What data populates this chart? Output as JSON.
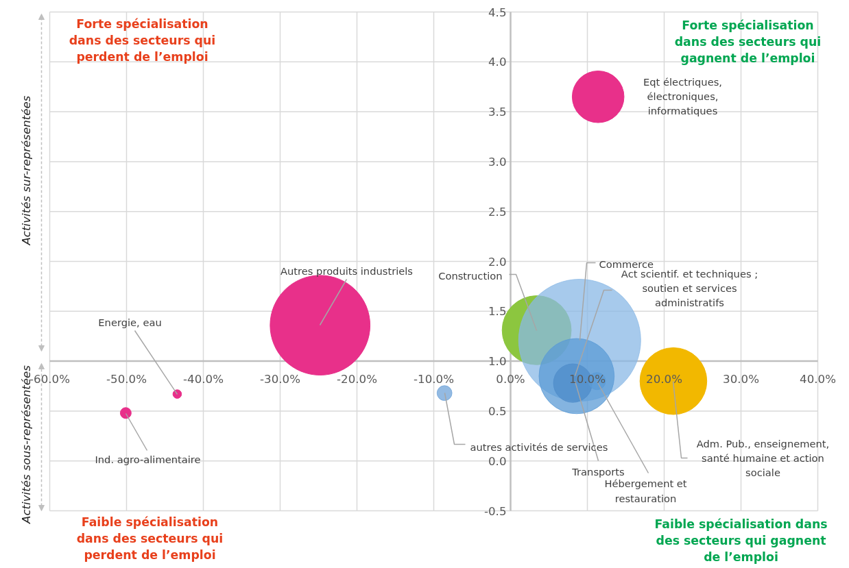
{
  "chart_data": {
    "type": "bubble",
    "series": [
      {
        "name": "Eqt électriques, électroniques, informatiques",
        "color": "#e8308a",
        "x": [
          11.4
        ],
        "values": [
          3.65
        ],
        "sizes": [
          0.18
        ]
      },
      {
        "name": "Autres produits industriels",
        "color": "#e8308a",
        "x": [
          -24.8
        ],
        "values": [
          1.36
        ],
        "sizes": [
          0.67
        ]
      },
      {
        "name": "Energie, eau",
        "color": "#e8308a",
        "x": [
          -43.4
        ],
        "values": [
          0.67
        ],
        "sizes": [
          0.005
        ]
      },
      {
        "name": "Ind. agro-alimentaire",
        "color": "#e8308a",
        "x": [
          -50.1
        ],
        "values": [
          0.48
        ],
        "sizes": [
          0.008
        ]
      },
      {
        "name": "autres activités de services",
        "color": "#6fa3d8",
        "x": [
          -8.6
        ],
        "values": [
          0.68
        ],
        "sizes": [
          0.015
        ]
      },
      {
        "name": "Construction",
        "color": "#8cc63f",
        "x": [
          3.4
        ],
        "values": [
          1.31
        ],
        "sizes": [
          0.32
        ]
      },
      {
        "name": "Commerce",
        "color": "#8ab8e6",
        "x": [
          9.0
        ],
        "values": [
          1.21
        ],
        "sizes": [
          1
        ]
      },
      {
        "name": "Act scientif. et techniques ; soutien et services administratifs",
        "color": "#5b9bd5",
        "x": [
          8.6
        ],
        "values": [
          0.85
        ],
        "sizes": [
          0.38
        ]
      },
      {
        "name": "Transports",
        "color": "#4f8cc9",
        "x": [
          8.1
        ],
        "values": [
          0.78
        ],
        "sizes": [
          0.1
        ]
      },
      {
        "name": "Hébergement et restauration",
        "color": "#5b9bd5",
        "x": [
          11.25
        ],
        "values": [
          0.8
        ],
        "sizes": [
          0.02
        ]
      },
      {
        "name": "Adm. Pub., enseignement, santé humaine et action sociale",
        "color": "#f2b800",
        "x": [
          21.2
        ],
        "values": [
          0.8
        ],
        "sizes": [
          0.3
        ]
      }
    ],
    "xlim": [
      -60,
      40
    ],
    "xticks": [
      {
        "value": -60,
        "label": "-60.0%"
      },
      {
        "value": -50,
        "label": "-50.0%"
      },
      {
        "value": -40,
        "label": "-40.0%"
      },
      {
        "value": -30,
        "label": "-30.0%"
      },
      {
        "value": -20,
        "label": "-20.0%"
      },
      {
        "value": -10,
        "label": "-10.0%"
      },
      {
        "value": 0,
        "label": "0.0%"
      },
      {
        "value": 10,
        "label": "10.0%"
      },
      {
        "value": 20,
        "label": "20.0%"
      },
      {
        "value": 30,
        "label": "30.0%"
      },
      {
        "value": 40,
        "label": "40.0%"
      }
    ],
    "ylim": [
      -0.5,
      4.5
    ],
    "yticks": [
      {
        "value": -0.5,
        "label": "-0.5"
      },
      {
        "value": 0,
        "label": "0.0"
      },
      {
        "value": 0.5,
        "label": "0.5"
      },
      {
        "value": 1,
        "label": "1.0"
      },
      {
        "value": 1.5,
        "label": "1.5"
      },
      {
        "value": 2,
        "label": "2.0"
      },
      {
        "value": 2.5,
        "label": "2.5"
      },
      {
        "value": 3,
        "label": "3.0"
      },
      {
        "value": 3.5,
        "label": "3.5"
      },
      {
        "value": 4,
        "label": "4.0"
      },
      {
        "value": 4.5,
        "label": "4.5"
      }
    ],
    "grid": true,
    "legend": false,
    "annotations": [
      "Forte spécialisation dans des secteurs qui perdent de l’emploi",
      "Forte spécialisation dans des secteurs qui gagnent de l’emploi",
      "Faible spécialisation dans des secteurs qui perdent de l’emploi",
      "Faible spécialisation dans des secteurs qui gagnent de l’emploi",
      "Activités sur-représentées",
      "Activités sous-représentées"
    ]
  }
}
